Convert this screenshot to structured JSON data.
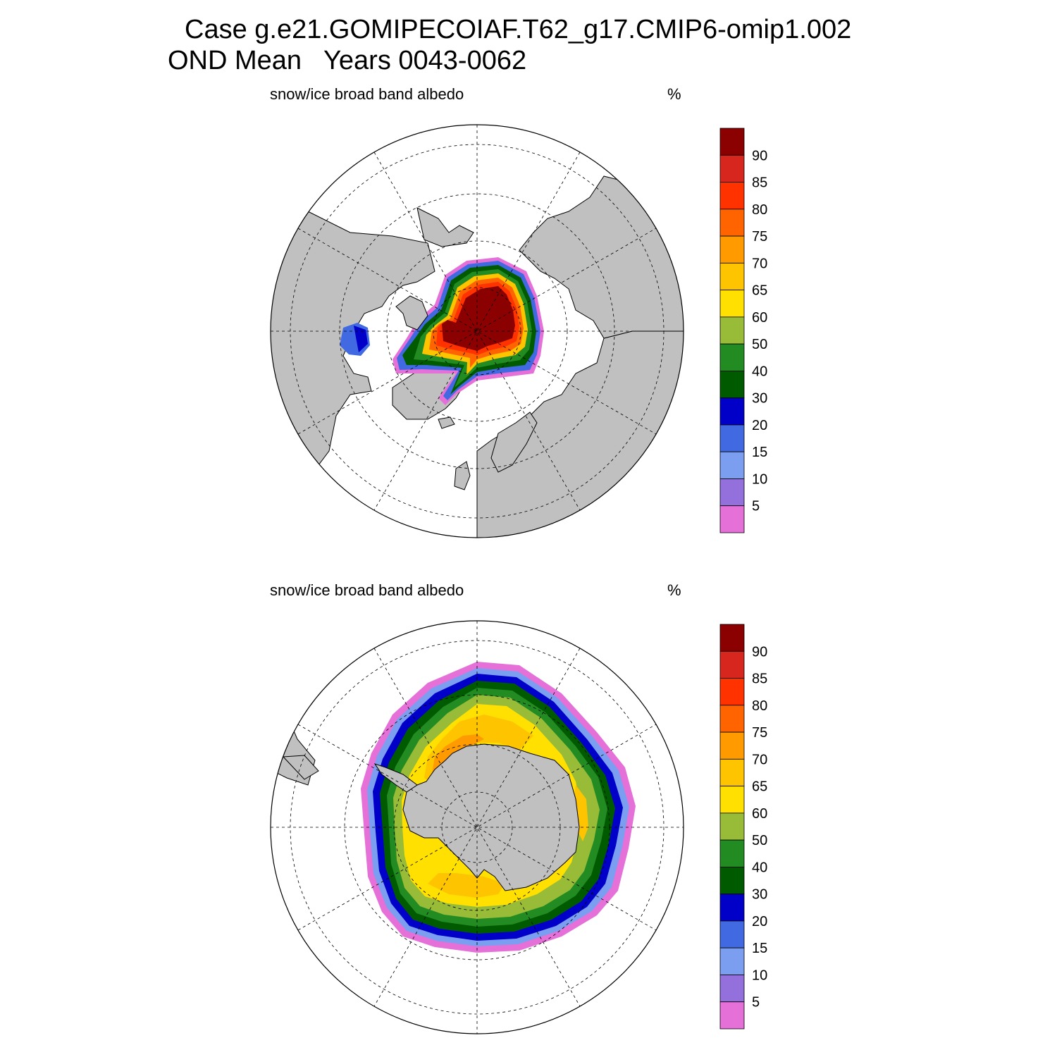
{
  "header": {
    "case_line": "Case g.e21.GOMIPECOIAF.T62_g17.CMIP6-omip1.002",
    "period_line": "OND Mean   Years 0043-0062"
  },
  "colors": {
    "land": "#c0c0c0",
    "ocean": "#ffffff",
    "levels": [
      "#e570d8",
      "#9370db",
      "#7b9ef0",
      "#4169e1",
      "#0000c8",
      "#005a00",
      "#228b22",
      "#98bb38",
      "#ffe000",
      "#ffc400",
      "#ff9a00",
      "#ff6400",
      "#ff3200",
      "#d7261e",
      "#8b0000"
    ]
  },
  "panels": [
    {
      "id": "north",
      "hemisphere": "Northern",
      "variable_label": "snow/ice broad band albedo",
      "units_label": "%"
    },
    {
      "id": "south",
      "hemisphere": "Southern",
      "variable_label": "snow/ice broad band albedo",
      "units_label": "%"
    }
  ],
  "colorbar": {
    "tick_labels": [
      "5",
      "10",
      "15",
      "20",
      "30",
      "40",
      "50",
      "60",
      "65",
      "70",
      "75",
      "80",
      "85",
      "90"
    ]
  }
}
